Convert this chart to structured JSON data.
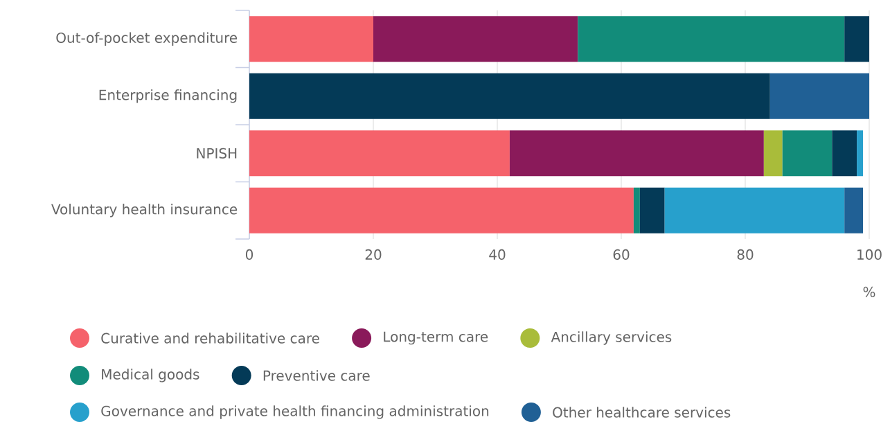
{
  "chart_data": {
    "type": "bar",
    "orientation": "horizontal",
    "stacked": true,
    "categories": [
      "Out-of-pocket expenditure",
      "Enterprise financing",
      "NPISH",
      "Voluntary health insurance"
    ],
    "xlabel": "%",
    "xlim": [
      0,
      100
    ],
    "xticks": [
      0,
      20,
      40,
      60,
      80,
      100
    ],
    "grid": "x",
    "legend": "bottom",
    "series": [
      {
        "name": "Curative and rehabilitative care",
        "color": "#f5626b",
        "values": [
          20,
          null,
          42,
          62
        ]
      },
      {
        "name": "Long-term care",
        "color": "#8a1a5a",
        "values": [
          33,
          null,
          41,
          null
        ]
      },
      {
        "name": "Ancillary services",
        "color": "#a9bc3a",
        "values": [
          null,
          null,
          3,
          null
        ]
      },
      {
        "name": "Medical goods",
        "color": "#128c7a",
        "values": [
          43,
          null,
          8,
          1
        ]
      },
      {
        "name": "Preventive care",
        "color": "#043a57",
        "values": [
          4,
          84,
          4,
          4
        ]
      },
      {
        "name": "Governance and private health financing administration",
        "color": "#27a0cc",
        "values": [
          null,
          null,
          1,
          29
        ]
      },
      {
        "name": "Other healthcare services",
        "color": "#206095",
        "values": [
          null,
          16,
          null,
          3
        ]
      }
    ]
  }
}
